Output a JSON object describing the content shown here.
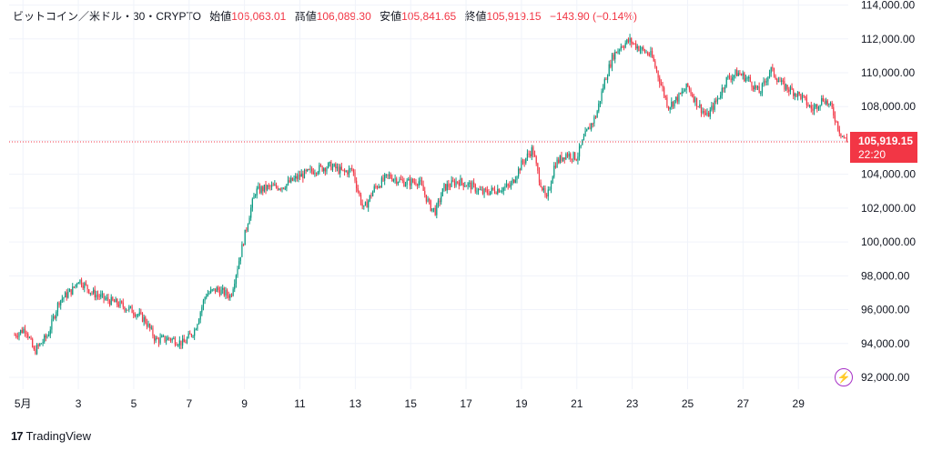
{
  "legend": {
    "symbol": "ビットコイン／米ドル・30・CRYPTO",
    "open_label": "始値",
    "open": "106,063.01",
    "high_label": "高値",
    "high": "106,089.30",
    "low_label": "安値",
    "low": "105,841.65",
    "close_label": "終値",
    "close": "105,919.15",
    "change": "−143.90 (−0.14%)"
  },
  "last_price": {
    "value": "105,919.15",
    "countdown": "22:20"
  },
  "brand": {
    "text": "TradingView"
  },
  "colors": {
    "up": "#089981",
    "down": "#f23645",
    "grid": "#f0f3fa",
    "price_line": "#f23645",
    "bolt": "#a630c6"
  },
  "icons": {
    "bolt": "lightning-bolt-icon",
    "logo": "tradingview-logo-icon"
  },
  "chart_data": {
    "type": "candlestick",
    "x_ticks": [
      "5月",
      "3",
      "5",
      "7",
      "9",
      "11",
      "13",
      "15",
      "17",
      "19",
      "21",
      "23",
      "25",
      "27",
      "29"
    ],
    "y_ticks": [
      "92,000.00",
      "94,000.00",
      "96,000.00",
      "98,000.00",
      "100,000.00",
      "102,000.00",
      "104,000.00",
      "106,000.00",
      "108,000.00",
      "110,000.00",
      "112,000.00",
      "114,000.00"
    ],
    "ylim": [
      91300,
      114300
    ],
    "xlim": [
      0.5,
      30.8
    ],
    "last_price": 105919.15,
    "price_path": [
      [
        0.7,
        94500
      ],
      [
        1.1,
        94900
      ],
      [
        1.4,
        93500
      ],
      [
        1.9,
        94500
      ],
      [
        2.3,
        96500
      ],
      [
        2.8,
        97200
      ],
      [
        3.0,
        97800
      ],
      [
        3.5,
        97000
      ],
      [
        4.0,
        96600
      ],
      [
        4.5,
        96300
      ],
      [
        5.0,
        95900
      ],
      [
        5.4,
        95400
      ],
      [
        5.8,
        94200
      ],
      [
        6.3,
        94300
      ],
      [
        6.8,
        94000
      ],
      [
        7.2,
        94800
      ],
      [
        7.6,
        96900
      ],
      [
        8.0,
        97200
      ],
      [
        8.5,
        96800
      ],
      [
        8.9,
        99600
      ],
      [
        9.2,
        101800
      ],
      [
        9.4,
        103000
      ],
      [
        9.8,
        103200
      ],
      [
        10.4,
        103300
      ],
      [
        11.0,
        103900
      ],
      [
        11.6,
        104300
      ],
      [
        12.1,
        104500
      ],
      [
        12.6,
        104100
      ],
      [
        12.9,
        104300
      ],
      [
        13.1,
        103000
      ],
      [
        13.3,
        101900
      ],
      [
        13.7,
        103200
      ],
      [
        14.2,
        103900
      ],
      [
        14.8,
        103500
      ],
      [
        15.3,
        103600
      ],
      [
        15.7,
        102100
      ],
      [
        15.9,
        101800
      ],
      [
        16.2,
        103200
      ],
      [
        16.7,
        103600
      ],
      [
        17.2,
        103300
      ],
      [
        17.6,
        102900
      ],
      [
        18.1,
        103100
      ],
      [
        18.6,
        103300
      ],
      [
        19.0,
        104600
      ],
      [
        19.4,
        105500
      ],
      [
        19.6,
        104000
      ],
      [
        19.9,
        102400
      ],
      [
        20.2,
        104600
      ],
      [
        20.6,
        105200
      ],
      [
        21.0,
        105000
      ],
      [
        21.3,
        106300
      ],
      [
        21.7,
        107500
      ],
      [
        22.0,
        109500
      ],
      [
        22.3,
        111000
      ],
      [
        22.6,
        111600
      ],
      [
        22.9,
        111900
      ],
      [
        23.3,
        111400
      ],
      [
        23.7,
        111000
      ],
      [
        24.0,
        109500
      ],
      [
        24.3,
        108000
      ],
      [
        24.7,
        108600
      ],
      [
        25.0,
        109200
      ],
      [
        25.3,
        108300
      ],
      [
        25.7,
        107400
      ],
      [
        26.1,
        108500
      ],
      [
        26.4,
        109600
      ],
      [
        26.8,
        110000
      ],
      [
        27.2,
        109600
      ],
      [
        27.6,
        108800
      ],
      [
        28.0,
        110200
      ],
      [
        28.4,
        109300
      ],
      [
        28.8,
        108900
      ],
      [
        29.1,
        108600
      ],
      [
        29.5,
        107800
      ],
      [
        29.9,
        108500
      ],
      [
        30.2,
        107900
      ],
      [
        30.5,
        106500
      ],
      [
        30.75,
        105919
      ]
    ]
  }
}
